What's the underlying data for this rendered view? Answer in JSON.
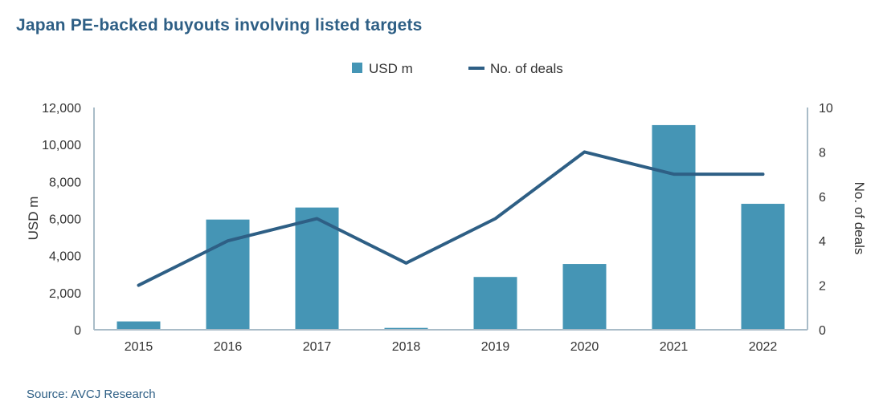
{
  "title": "Japan PE-backed buyouts involving listed targets",
  "source": "Source: AVCJ Research",
  "colors": {
    "bar": "#4595b5",
    "line": "#2e5f85",
    "axis": "#a9bcc8",
    "text": "#333333",
    "title": "#2e5f85"
  },
  "chart_data": {
    "type": "bar",
    "categories": [
      "2015",
      "2016",
      "2017",
      "2018",
      "2019",
      "2020",
      "2021",
      "2022"
    ],
    "series": [
      {
        "name": "USD m",
        "type": "bar",
        "axis": "left",
        "values": [
          450,
          5950,
          6600,
          100,
          2850,
          3550,
          11050,
          6800
        ]
      },
      {
        "name": "No. of deals",
        "type": "line",
        "axis": "right",
        "values": [
          2,
          4,
          5,
          3,
          5,
          8,
          7,
          7
        ]
      }
    ],
    "ylabel": "USD m",
    "y2label": "No. of deals",
    "ylim": [
      0,
      12000
    ],
    "y2lim": [
      0,
      10
    ],
    "yticks": [
      "0",
      "2,000",
      "4,000",
      "6,000",
      "8,000",
      "10,000",
      "12,000"
    ],
    "y2ticks": [
      "0",
      "2",
      "4",
      "6",
      "8",
      "10"
    ],
    "legend": "top-center",
    "grid": false
  }
}
